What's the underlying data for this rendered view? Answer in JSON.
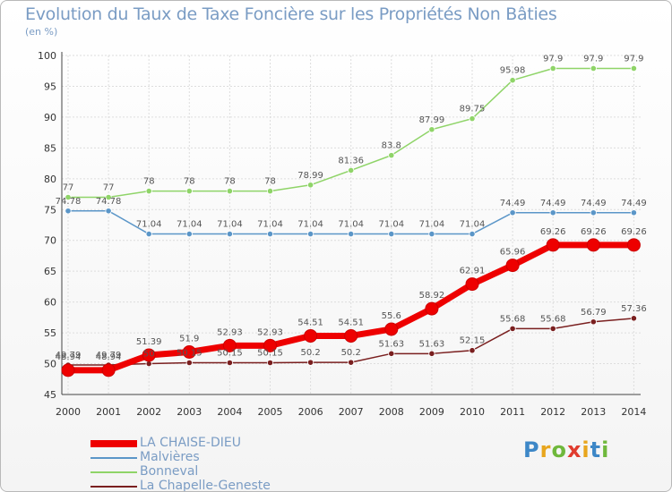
{
  "title": "Evolution du Taux de Taxe Foncière sur les Propriétés Non Bâties",
  "unit_label": "(en %)",
  "logo": {
    "text": "Proxiti",
    "colors": [
      "#3d87c7",
      "#e8a61e",
      "#6fb83c",
      "#e03c2e",
      "#e8a61e",
      "#3d87c7",
      "#6fb83c"
    ]
  },
  "chart_data": {
    "type": "line",
    "title": "Evolution du Taux de Taxe Foncière sur les Propriétés Non Bâties",
    "ylabel": "(en %)",
    "xlabel": "",
    "x": [
      "2000",
      "2001",
      "2002",
      "2003",
      "2004",
      "2005",
      "2006",
      "2007",
      "2008",
      "2009",
      "2010",
      "2011",
      "2012",
      "2013",
      "2014"
    ],
    "ylim": [
      45,
      100
    ],
    "yticks": [
      "45",
      "50",
      "55",
      "60",
      "65",
      "70",
      "75",
      "80",
      "85",
      "90",
      "95",
      "100"
    ],
    "grid": true,
    "legend_position": "bottom-left",
    "series": [
      {
        "name": "LA CHAISE-DIEU",
        "color": "#ee0000",
        "width": 7,
        "values": [
          48.94,
          48.94,
          51.39,
          51.9,
          52.93,
          52.93,
          54.51,
          54.51,
          55.6,
          58.92,
          62.91,
          65.96,
          69.26,
          69.26,
          69.26
        ],
        "labels": [
          "48.94",
          "48.94",
          "51.39",
          "51.9",
          "52.93",
          "52.93",
          "54.51",
          "54.51",
          "55.6",
          "58.92",
          "62.91",
          "65.96",
          "69.26",
          "69.26",
          "69.26"
        ]
      },
      {
        "name": "Malvières",
        "color": "#5b96c8",
        "width": 1.5,
        "values": [
          74.78,
          74.78,
          71.04,
          71.04,
          71.04,
          71.04,
          71.04,
          71.04,
          71.04,
          71.04,
          71.04,
          74.49,
          74.49,
          74.49,
          74.49
        ],
        "labels": [
          "74.78",
          "74.78",
          "71.04",
          "71.04",
          "71.04",
          "71.04",
          "71.04",
          "71.04",
          "71.04",
          "71.04",
          "71.04",
          "74.49",
          "74.49",
          "74.49",
          "74.49"
        ]
      },
      {
        "name": "Bonneval",
        "color": "#8fd468",
        "width": 1.5,
        "values": [
          77,
          77,
          78,
          78,
          78,
          78,
          78.99,
          81.36,
          83.8,
          87.99,
          89.75,
          95.98,
          97.9,
          97.9,
          97.9
        ],
        "labels": [
          "77",
          "77",
          "78",
          "78",
          "78",
          "78",
          "78.99",
          "81.36",
          "83.8",
          "87.99",
          "89.75",
          "95.98",
          "97.9",
          "97.9",
          "97.9"
        ]
      },
      {
        "name": "La Chapelle-Geneste",
        "color": "#7a1f1f",
        "width": 1.5,
        "values": [
          49.79,
          49.79,
          50,
          50.15,
          50.15,
          50.15,
          50.2,
          50.2,
          51.63,
          51.63,
          52.15,
          55.68,
          55.68,
          56.79,
          57.36
        ],
        "labels": [
          "49.79",
          "49.79",
          "50",
          "50.15",
          "50.15",
          "50.15",
          "50.2",
          "50.2",
          "51.63",
          "51.63",
          "52.15",
          "55.68",
          "55.68",
          "56.79",
          "57.36"
        ]
      }
    ]
  }
}
